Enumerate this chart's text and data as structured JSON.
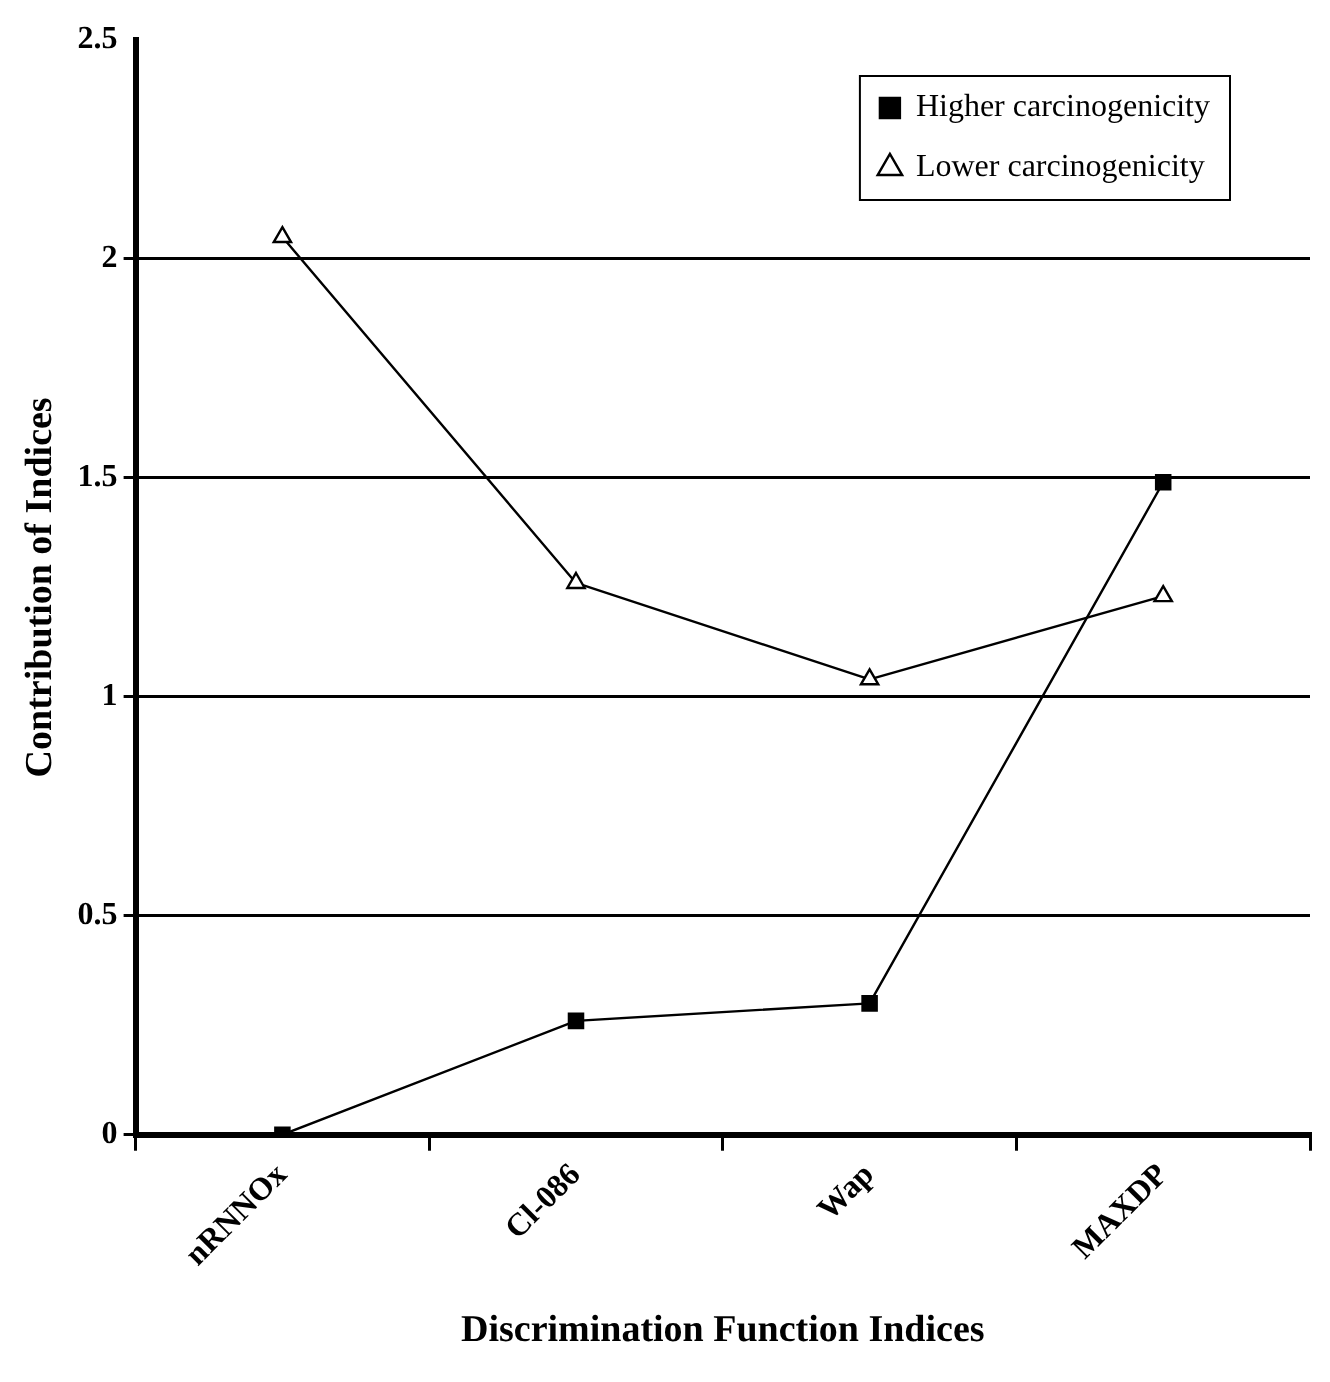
{
  "chart_data": {
    "type": "line",
    "xlabel": "Discrimination Function Indices",
    "ylabel": "Contribution of Indices",
    "categories": [
      "nRNNOx",
      "Cl-086",
      "Wap",
      "MAXDP"
    ],
    "series": [
      {
        "name": "Higher carcinogenicity",
        "color": "#000000",
        "marker": "square",
        "values": [
          0,
          0.26,
          0.3,
          1.49
        ]
      },
      {
        "name": "Lower carcinogenicity",
        "color": "#000000",
        "marker": "triangle",
        "values": [
          2.05,
          1.26,
          1.04,
          1.23
        ]
      }
    ],
    "ylim": [
      0,
      2.5
    ],
    "yticks": [
      0,
      0.5,
      1,
      1.5,
      2,
      2.5
    ],
    "grid": "y",
    "legend": "top right",
    "line_style": "solid"
  }
}
